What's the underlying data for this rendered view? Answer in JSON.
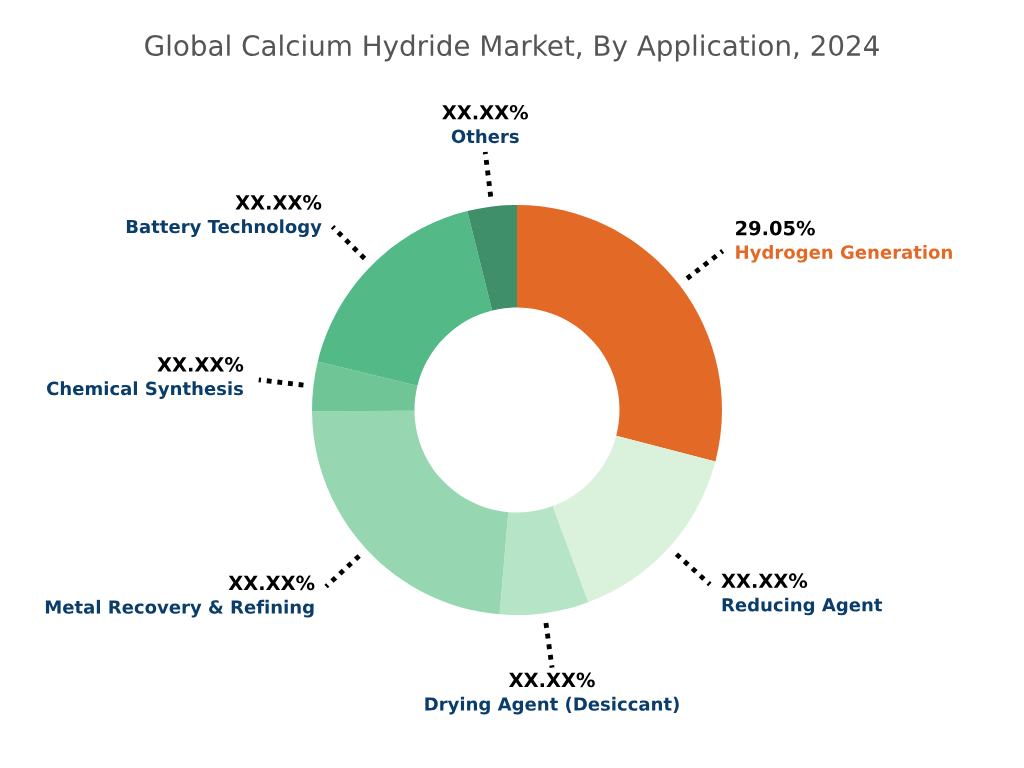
{
  "chart_data": {
    "type": "donut",
    "title": "Global Calcium Hydride Market, By Application, 2024",
    "categories": [
      "Hydrogen Generation",
      "Reducing Agent",
      "Drying Agent (Desiccant)",
      "Metal Recovery & Refining",
      "Chemical Synthesis",
      "Battery Technology",
      "Others"
    ],
    "values": [
      29.05,
      15.3,
      7.0,
      23.55,
      3.9,
      17.3,
      3.9
    ],
    "colors": [
      "#e36a26",
      "#daf2dc",
      "#b6e4c6",
      "#96d7b2",
      "#6fc596",
      "#52b987",
      "#3f8f6a"
    ],
    "value_labels": [
      "29.05%",
      "XX.XX%",
      "XX.XX%",
      "XX.XX%",
      "XX.XX%",
      "XX.XX%",
      "XX.XX%"
    ],
    "legend": false
  }
}
